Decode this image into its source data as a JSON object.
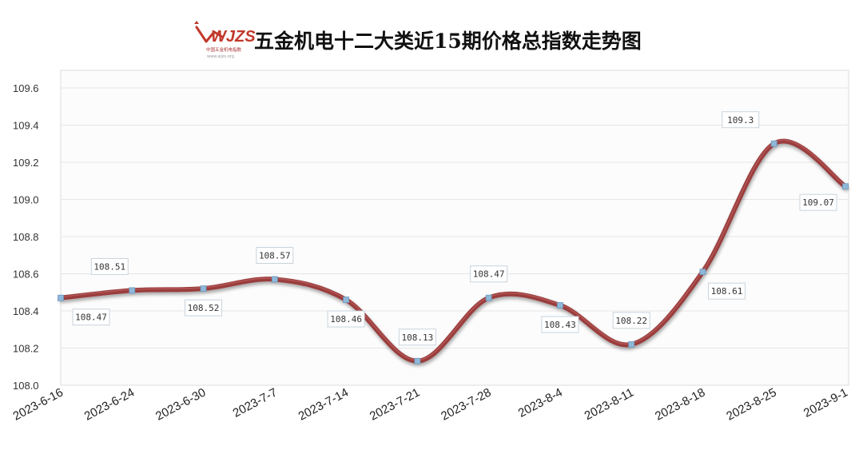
{
  "header": {
    "title": "五金机电十二大类近15期价格总指数走势图",
    "logo_text": "WJZS",
    "logo_subtitle": "中国五金机电指数",
    "logo_url": "www.wjzs.org"
  },
  "colors": {
    "line": "#9a3d3d",
    "line_highlight": "#c86a6a",
    "marker": "#8fb8d8",
    "marker_stroke": "#6b98bf",
    "plot_bg": "#fcfcfc",
    "grid": "#e6e6e6",
    "label_border": "#c9d3dc",
    "logo_red": "#c0392b"
  },
  "chart_data": {
    "type": "line",
    "title": "五金机电十二大类近15期价格总指数走势图",
    "xlabel": "",
    "ylabel": "",
    "ylim": [
      108.0,
      109.7
    ],
    "yticks": [
      "108.0",
      "108.2",
      "108.4",
      "108.6",
      "108.8",
      "109.0",
      "109.2",
      "109.4",
      "109.6"
    ],
    "categories": [
      "2023-6-16",
      "2023-6-24",
      "2023-6-30",
      "2023-7-7",
      "2023-7-14",
      "2023-7-21",
      "2023-7-28",
      "2023-8-4",
      "2023-8-11",
      "2023-8-18",
      "2023-8-25",
      "2023-9-1"
    ],
    "values": [
      108.47,
      108.51,
      108.52,
      108.57,
      108.46,
      108.13,
      108.47,
      108.43,
      108.22,
      108.61,
      109.3,
      109.07
    ],
    "data_labels": [
      "108.47",
      "108.51",
      "108.52",
      "108.57",
      "108.46",
      "108.13",
      "108.47",
      "108.43",
      "108.22",
      "108.61",
      "109.3",
      "109.07"
    ],
    "label_positions": [
      "below",
      "above",
      "below",
      "above",
      "below",
      "above",
      "above",
      "below",
      "above",
      "below",
      "above",
      "below"
    ],
    "grid": true,
    "legend": "none",
    "smooth": true
  }
}
